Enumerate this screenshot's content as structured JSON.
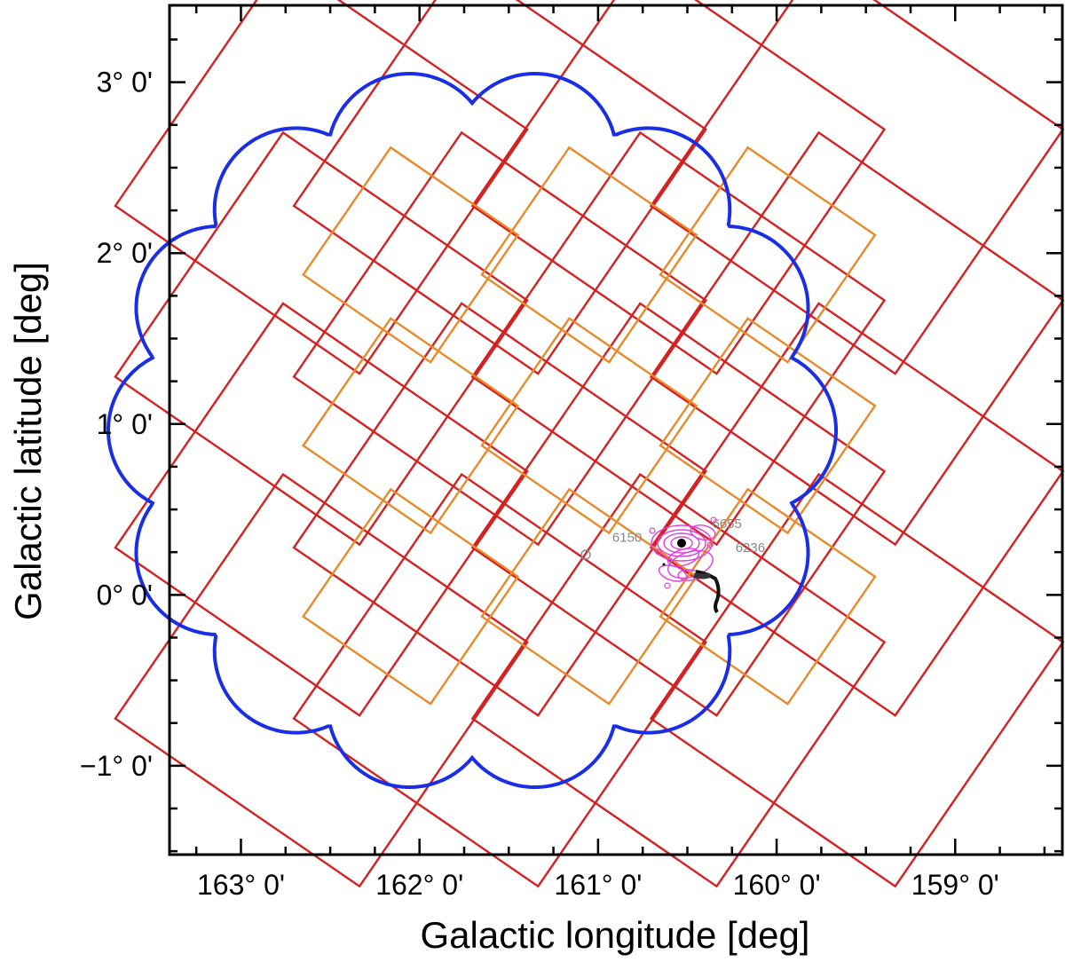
{
  "axes": {
    "xlabel": "Galactic longitude [deg]",
    "ylabel": "Galactic latitude [deg]",
    "x_ticks": [
      {
        "value": 163,
        "label": "163° 0'"
      },
      {
        "value": 162,
        "label": "162° 0'"
      },
      {
        "value": 161,
        "label": "161° 0'"
      },
      {
        "value": 160,
        "label": "160° 0'"
      },
      {
        "value": 159,
        "label": "159° 0'"
      }
    ],
    "y_ticks": [
      {
        "value": 3,
        "label": "3° 0'"
      },
      {
        "value": 2,
        "label": "2° 0'"
      },
      {
        "value": 1,
        "label": "1° 0'"
      },
      {
        "value": 0,
        "label": "0° 0'"
      },
      {
        "value": -1,
        "label": "−1° 0'"
      }
    ],
    "xlim": [
      163.4,
      158.4
    ],
    "ylim": [
      -1.52,
      3.45
    ]
  },
  "colors": {
    "red_fields": "#d62020",
    "orange_fields": "#e88a2a",
    "coverage_outline": "#1a2ee6",
    "contours": "#e040e0",
    "source_labels": "#888888"
  },
  "fields": {
    "red_centers": [
      [
        162.55,
        2.5
      ],
      [
        161.55,
        2.5
      ],
      [
        160.55,
        2.5
      ],
      [
        159.55,
        2.5
      ],
      [
        162.55,
        1.5
      ],
      [
        161.55,
        1.5
      ],
      [
        160.55,
        1.5
      ],
      [
        159.55,
        1.5
      ],
      [
        162.55,
        0.5
      ],
      [
        161.55,
        0.5
      ],
      [
        160.55,
        0.5
      ],
      [
        159.55,
        0.5
      ],
      [
        162.55,
        -0.5
      ],
      [
        161.55,
        -0.5
      ],
      [
        160.55,
        -0.5
      ],
      [
        159.55,
        -0.5
      ]
    ],
    "orange_centers": [
      [
        162.05,
        1.99
      ],
      [
        161.05,
        1.99
      ],
      [
        160.05,
        1.99
      ],
      [
        162.05,
        0.99
      ],
      [
        161.05,
        0.99
      ],
      [
        160.05,
        0.99
      ],
      [
        162.05,
        -0.01
      ],
      [
        161.05,
        -0.01
      ],
      [
        160.05,
        -0.01
      ]
    ]
  },
  "sources": [
    {
      "label": "6655",
      "l": 160.45,
      "b": 0.36
    },
    {
      "label": "6236",
      "l": 160.3,
      "b": 0.2
    },
    {
      "label": "6150",
      "l": 160.98,
      "b": 0.28
    }
  ]
}
